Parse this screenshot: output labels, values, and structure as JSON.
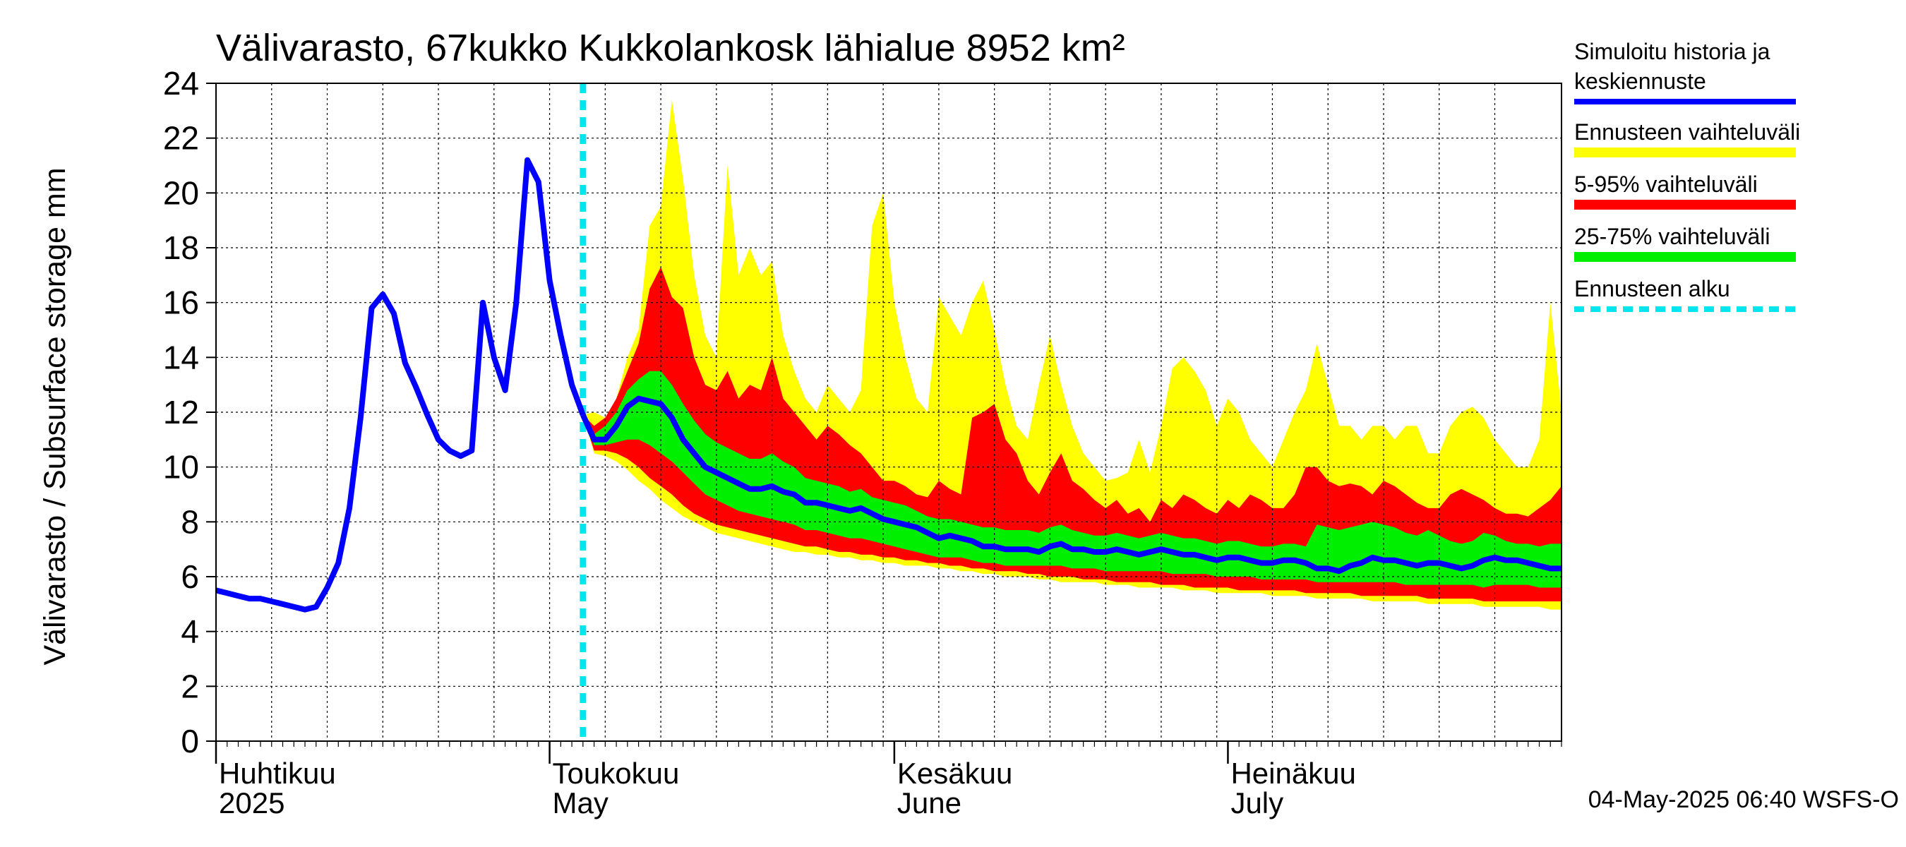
{
  "chart_data": {
    "type": "area",
    "title": "Välivarasto, 67kukko Kukkolankosk lähialue 8952 km²",
    "ylabel": "Välivarasto / Subsurface storage  mm",
    "ylim": [
      0,
      24
    ],
    "yticks": [
      0,
      2,
      4,
      6,
      8,
      10,
      12,
      14,
      16,
      18,
      20,
      22,
      24
    ],
    "x_start": "2025-04-01",
    "x_end": "2025-07-31",
    "grid": true,
    "months": [
      {
        "date": "2025-04-01",
        "fi": "Huhtikuu",
        "en": "2025"
      },
      {
        "date": "2025-05-01",
        "fi": "Toukokuu",
        "en": "May"
      },
      {
        "date": "2025-06-01",
        "fi": "Kesäkuu",
        "en": "June"
      },
      {
        "date": "2025-07-01",
        "fi": "Heinäkuu",
        "en": "July"
      }
    ],
    "forecast_start": "2025-05-04",
    "legend": [
      {
        "label1": "Simuloitu historia ja",
        "label2": "keskiennuste",
        "color": "#0000ff",
        "style": "line"
      },
      {
        "label1": "Ennusteen vaihteluväli",
        "label2": "",
        "color": "#ffff00",
        "style": "band"
      },
      {
        "label1": "5-95% vaihteluväli",
        "label2": "",
        "color": "#ff0000",
        "style": "band"
      },
      {
        "label1": "25-75% vaihteluväli",
        "label2": "",
        "color": "#00ee00",
        "style": "band"
      },
      {
        "label1": "Ennusteen alku",
        "label2": "",
        "color": "#00e5ee",
        "style": "dashed"
      }
    ],
    "history": {
      "x": [
        "2025-04-01",
        "2025-04-02",
        "2025-04-03",
        "2025-04-04",
        "2025-04-05",
        "2025-04-06",
        "2025-04-07",
        "2025-04-08",
        "2025-04-09",
        "2025-04-10",
        "2025-04-11",
        "2025-04-12",
        "2025-04-13",
        "2025-04-14",
        "2025-04-15",
        "2025-04-16",
        "2025-04-17",
        "2025-04-18",
        "2025-04-19",
        "2025-04-20",
        "2025-04-21",
        "2025-04-22",
        "2025-04-23",
        "2025-04-24",
        "2025-04-25",
        "2025-04-26",
        "2025-04-27",
        "2025-04-28",
        "2025-04-29",
        "2025-04-30",
        "2025-05-01",
        "2025-05-02",
        "2025-05-03",
        "2025-05-04"
      ],
      "y": [
        5.5,
        5.4,
        5.3,
        5.2,
        5.2,
        5.1,
        5.0,
        4.9,
        4.8,
        4.9,
        5.6,
        6.5,
        8.5,
        11.8,
        15.8,
        16.3,
        15.6,
        13.8,
        12.9,
        11.9,
        11.0,
        10.6,
        10.4,
        10.6,
        16.0,
        14.0,
        12.8,
        16.0,
        21.2,
        20.4,
        16.8,
        14.8,
        13.0,
        11.9
      ]
    },
    "forecast": {
      "x": [
        "2025-05-04",
        "2025-05-05",
        "2025-05-06",
        "2025-05-07",
        "2025-05-08",
        "2025-05-09",
        "2025-05-10",
        "2025-05-11",
        "2025-05-12",
        "2025-05-13",
        "2025-05-14",
        "2025-05-15",
        "2025-05-16",
        "2025-05-17",
        "2025-05-18",
        "2025-05-19",
        "2025-05-20",
        "2025-05-21",
        "2025-05-22",
        "2025-05-23",
        "2025-05-24",
        "2025-05-25",
        "2025-05-26",
        "2025-05-27",
        "2025-05-28",
        "2025-05-29",
        "2025-05-30",
        "2025-05-31",
        "2025-06-01",
        "2025-06-02",
        "2025-06-03",
        "2025-06-04",
        "2025-06-05",
        "2025-06-06",
        "2025-06-07",
        "2025-06-08",
        "2025-06-09",
        "2025-06-10",
        "2025-06-11",
        "2025-06-12",
        "2025-06-13",
        "2025-06-14",
        "2025-06-15",
        "2025-06-16",
        "2025-06-17",
        "2025-06-18",
        "2025-06-19",
        "2025-06-20",
        "2025-06-21",
        "2025-06-22",
        "2025-06-23",
        "2025-06-24",
        "2025-06-25",
        "2025-06-26",
        "2025-06-27",
        "2025-06-28",
        "2025-06-29",
        "2025-06-30",
        "2025-07-01",
        "2025-07-02",
        "2025-07-03",
        "2025-07-04",
        "2025-07-05",
        "2025-07-06",
        "2025-07-07",
        "2025-07-08",
        "2025-07-09",
        "2025-07-10",
        "2025-07-11",
        "2025-07-12",
        "2025-07-13",
        "2025-07-14",
        "2025-07-15",
        "2025-07-16",
        "2025-07-17",
        "2025-07-18",
        "2025-07-19",
        "2025-07-20",
        "2025-07-21",
        "2025-07-22",
        "2025-07-23",
        "2025-07-24",
        "2025-07-25",
        "2025-07-26",
        "2025-07-27",
        "2025-07-28",
        "2025-07-29",
        "2025-07-30",
        "2025-07-31"
      ],
      "median": [
        11.9,
        11.0,
        11.0,
        11.5,
        12.2,
        12.5,
        12.4,
        12.3,
        11.8,
        11.0,
        10.5,
        10.0,
        9.8,
        9.6,
        9.4,
        9.2,
        9.2,
        9.3,
        9.1,
        9.0,
        8.7,
        8.7,
        8.6,
        8.5,
        8.4,
        8.5,
        8.3,
        8.1,
        8.0,
        7.9,
        7.8,
        7.6,
        7.4,
        7.5,
        7.4,
        7.3,
        7.1,
        7.1,
        7.0,
        7.0,
        7.0,
        6.9,
        7.1,
        7.2,
        7.0,
        7.0,
        6.9,
        6.9,
        7.0,
        6.9,
        6.8,
        6.9,
        7.0,
        6.9,
        6.8,
        6.8,
        6.7,
        6.6,
        6.7,
        6.7,
        6.6,
        6.5,
        6.5,
        6.6,
        6.6,
        6.5,
        6.3,
        6.3,
        6.2,
        6.4,
        6.5,
        6.7,
        6.6,
        6.6,
        6.5,
        6.4,
        6.5,
        6.5,
        6.4,
        6.3,
        6.4,
        6.6,
        6.7,
        6.6,
        6.6,
        6.5,
        6.4,
        6.3,
        6.3
      ],
      "min": [
        11.9,
        10.5,
        10.4,
        10.2,
        9.9,
        9.5,
        9.2,
        8.8,
        8.5,
        8.2,
        8.0,
        7.8,
        7.6,
        7.5,
        7.4,
        7.3,
        7.2,
        7.1,
        7.0,
        6.9,
        6.9,
        6.8,
        6.8,
        6.7,
        6.7,
        6.6,
        6.6,
        6.5,
        6.5,
        6.4,
        6.4,
        6.4,
        6.3,
        6.3,
        6.2,
        6.2,
        6.1,
        6.1,
        6.0,
        6.0,
        6.0,
        5.9,
        5.9,
        5.8,
        5.8,
        5.8,
        5.8,
        5.7,
        5.7,
        5.7,
        5.6,
        5.6,
        5.6,
        5.6,
        5.5,
        5.5,
        5.5,
        5.4,
        5.4,
        5.4,
        5.4,
        5.4,
        5.3,
        5.3,
        5.3,
        5.3,
        5.2,
        5.2,
        5.2,
        5.2,
        5.2,
        5.1,
        5.1,
        5.1,
        5.1,
        5.1,
        5.0,
        5.0,
        5.0,
        5.0,
        5.0,
        4.9,
        4.9,
        4.9,
        4.9,
        4.9,
        4.9,
        4.8,
        4.8
      ],
      "max": [
        11.9,
        12.0,
        11.8,
        12.5,
        14.0,
        15.0,
        18.8,
        19.5,
        23.4,
        20.5,
        17.0,
        14.8,
        14.0,
        21.0,
        17.0,
        18.0,
        17.0,
        17.5,
        14.8,
        13.5,
        12.5,
        12.0,
        13.0,
        12.5,
        12.0,
        12.8,
        18.8,
        20.0,
        16.0,
        14.0,
        12.5,
        12.0,
        16.2,
        15.5,
        14.8,
        16.0,
        16.8,
        15.0,
        13.0,
        11.5,
        11.0,
        13.0,
        14.8,
        13.0,
        11.5,
        10.5,
        10.0,
        9.5,
        9.6,
        9.8,
        11.0,
        9.8,
        11.5,
        13.6,
        14.0,
        13.5,
        12.8,
        11.5,
        12.5,
        12.0,
        11.0,
        10.5,
        10.0,
        11.0,
        12.0,
        12.8,
        14.5,
        13.0,
        11.5,
        11.5,
        11.0,
        11.5,
        11.5,
        11.0,
        11.5,
        11.5,
        10.5,
        10.5,
        11.5,
        12.0,
        12.2,
        11.8,
        11.0,
        10.5,
        10.0,
        10.0,
        11.0,
        16.0,
        12.0
      ],
      "p5": [
        11.9,
        10.6,
        10.6,
        10.5,
        10.3,
        10.0,
        9.6,
        9.3,
        9.0,
        8.6,
        8.3,
        8.1,
        7.9,
        7.8,
        7.7,
        7.6,
        7.5,
        7.4,
        7.3,
        7.2,
        7.1,
        7.1,
        7.0,
        6.9,
        6.9,
        6.8,
        6.8,
        6.7,
        6.7,
        6.6,
        6.6,
        6.5,
        6.5,
        6.4,
        6.4,
        6.3,
        6.3,
        6.2,
        6.2,
        6.2,
        6.1,
        6.1,
        6.0,
        6.0,
        6.0,
        5.9,
        5.9,
        5.9,
        5.8,
        5.8,
        5.8,
        5.8,
        5.7,
        5.7,
        5.7,
        5.6,
        5.6,
        5.6,
        5.6,
        5.5,
        5.5,
        5.5,
        5.5,
        5.5,
        5.5,
        5.4,
        5.4,
        5.4,
        5.4,
        5.4,
        5.3,
        5.3,
        5.3,
        5.3,
        5.3,
        5.3,
        5.2,
        5.2,
        5.2,
        5.2,
        5.2,
        5.1,
        5.1,
        5.1,
        5.1,
        5.1,
        5.1,
        5.1,
        5.1
      ],
      "p95": [
        11.9,
        11.5,
        11.8,
        12.5,
        13.5,
        14.5,
        16.5,
        17.3,
        16.2,
        15.8,
        14.0,
        13.0,
        12.8,
        13.5,
        12.5,
        13.0,
        12.8,
        14.0,
        12.5,
        12.0,
        11.5,
        11.0,
        11.5,
        11.2,
        10.8,
        10.5,
        10.0,
        9.5,
        9.5,
        9.3,
        9.0,
        8.9,
        9.5,
        9.2,
        9.0,
        11.8,
        12.0,
        12.3,
        11.0,
        10.5,
        9.5,
        9.0,
        9.8,
        10.5,
        9.5,
        9.2,
        8.8,
        8.5,
        8.8,
        8.3,
        8.5,
        8.0,
        8.8,
        8.5,
        9.0,
        8.8,
        8.5,
        8.3,
        8.8,
        8.5,
        9.0,
        8.8,
        8.5,
        8.5,
        9.0,
        10.0,
        10.0,
        9.5,
        9.3,
        9.4,
        9.3,
        9.0,
        9.5,
        9.3,
        9.0,
        8.7,
        8.5,
        8.5,
        9.0,
        9.2,
        9.0,
        8.8,
        8.5,
        8.3,
        8.3,
        8.2,
        8.5,
        8.8,
        9.3
      ],
      "p25": [
        11.9,
        10.8,
        10.8,
        10.9,
        11.0,
        11.0,
        10.8,
        10.5,
        10.2,
        9.8,
        9.4,
        9.0,
        8.8,
        8.6,
        8.4,
        8.3,
        8.2,
        8.1,
        8.0,
        7.9,
        7.7,
        7.7,
        7.6,
        7.5,
        7.4,
        7.4,
        7.3,
        7.2,
        7.1,
        7.0,
        6.9,
        6.8,
        6.7,
        6.7,
        6.7,
        6.6,
        6.5,
        6.5,
        6.4,
        6.4,
        6.4,
        6.4,
        6.4,
        6.4,
        6.3,
        6.3,
        6.3,
        6.2,
        6.2,
        6.2,
        6.2,
        6.2,
        6.2,
        6.1,
        6.1,
        6.1,
        6.1,
        6.0,
        6.0,
        6.0,
        6.0,
        5.9,
        5.9,
        5.9,
        5.9,
        5.9,
        5.8,
        5.8,
        5.8,
        5.8,
        5.8,
        5.8,
        5.8,
        5.8,
        5.7,
        5.7,
        5.7,
        5.7,
        5.7,
        5.7,
        5.7,
        5.6,
        5.7,
        5.7,
        5.7,
        5.7,
        5.6,
        5.6,
        5.6
      ],
      "p75": [
        11.9,
        11.2,
        11.5,
        12.0,
        12.8,
        13.2,
        13.5,
        13.5,
        13.0,
        12.3,
        11.7,
        11.2,
        10.9,
        10.7,
        10.5,
        10.3,
        10.3,
        10.5,
        10.2,
        10.0,
        9.6,
        9.5,
        9.4,
        9.3,
        9.1,
        9.2,
        8.9,
        8.8,
        8.7,
        8.6,
        8.4,
        8.2,
        8.1,
        8.1,
        8.0,
        7.9,
        7.8,
        7.8,
        7.7,
        7.7,
        7.7,
        7.6,
        7.8,
        7.9,
        7.7,
        7.6,
        7.5,
        7.5,
        7.6,
        7.5,
        7.4,
        7.5,
        7.6,
        7.5,
        7.4,
        7.4,
        7.3,
        7.2,
        7.3,
        7.3,
        7.2,
        7.1,
        7.1,
        7.2,
        7.2,
        7.1,
        7.9,
        7.8,
        7.7,
        7.8,
        7.9,
        8.0,
        7.9,
        7.8,
        7.6,
        7.5,
        7.7,
        7.5,
        7.3,
        7.2,
        7.3,
        7.6,
        7.5,
        7.3,
        7.2,
        7.2,
        7.1,
        7.2,
        7.2
      ]
    }
  },
  "footer": "04-May-2025 06:40 WSFS-O"
}
